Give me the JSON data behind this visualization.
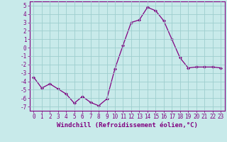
{
  "x": [
    0,
    1,
    2,
    3,
    4,
    5,
    6,
    7,
    8,
    9,
    10,
    11,
    12,
    13,
    14,
    15,
    16,
    17,
    18,
    19,
    20,
    21,
    22,
    23
  ],
  "y": [
    -3.5,
    -4.8,
    -4.3,
    -4.9,
    -5.5,
    -6.6,
    -5.8,
    -6.5,
    -6.9,
    -6.1,
    -2.5,
    0.3,
    3.0,
    3.3,
    4.8,
    4.4,
    3.2,
    1.0,
    -1.2,
    -2.4,
    -2.3,
    -2.3,
    -2.3,
    -2.4
  ],
  "line_color": "#800080",
  "marker": "D",
  "markersize": 2,
  "linewidth": 0.9,
  "bg_color": "#c8eaea",
  "grid_color": "#9ecece",
  "xlabel": "Windchill (Refroidissement éolien,°C)",
  "xlabel_color": "#800080",
  "xlabel_fontsize": 6.5,
  "ylabel_ticks": [
    5,
    4,
    3,
    2,
    1,
    0,
    -1,
    -2,
    -3,
    -4,
    -5,
    -6,
    -7
  ],
  "xtick_labels": [
    "0",
    "1",
    "2",
    "3",
    "4",
    "5",
    "6",
    "7",
    "8",
    "9",
    "10",
    "11",
    "12",
    "13",
    "14",
    "15",
    "16",
    "17",
    "18",
    "19",
    "20",
    "21",
    "22",
    "23"
  ],
  "ylim": [
    -7.5,
    5.5
  ],
  "xlim": [
    -0.5,
    23.5
  ],
  "tick_color": "#800080",
  "tick_fontsize": 5.5,
  "spine_color": "#800080"
}
